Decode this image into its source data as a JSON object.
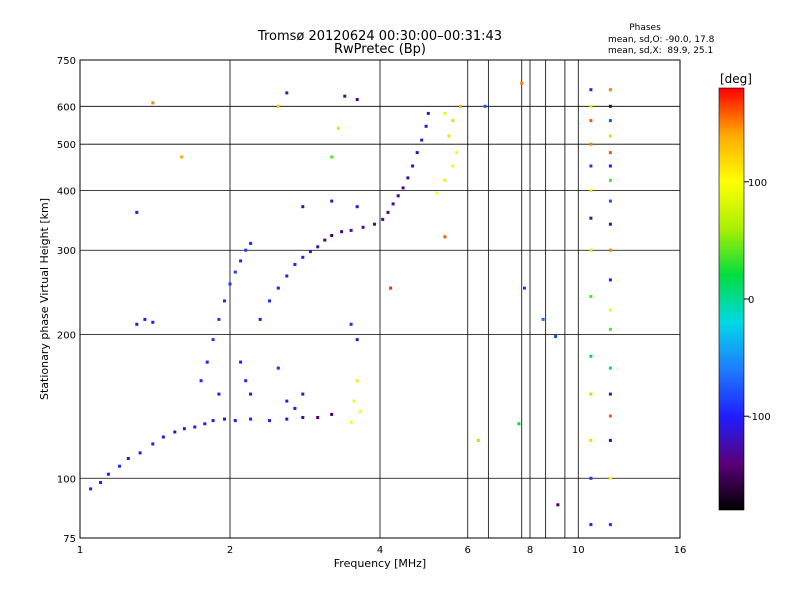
{
  "chart_data": {
    "type": "scatter",
    "title": "Tromsø 20120624 00:30:00–00:31:43",
    "subtitle": "RwPretec (Bp)",
    "xlabel": "Frequency [MHz]",
    "ylabel": "Stationary phase Virtual Height [km]",
    "x_scale": "log",
    "y_scale": "log",
    "xlim": [
      1,
      16
    ],
    "ylim": [
      75,
      750
    ],
    "x_ticks": [
      1,
      2,
      4,
      6,
      8,
      10,
      16
    ],
    "x_minor_gridlines": [
      6.6,
      7.7,
      8.6,
      9.4
    ],
    "y_ticks": [
      75,
      100,
      200,
      300,
      400,
      500,
      600,
      750
    ],
    "grid": true,
    "phase_stats": {
      "heading": "Phases",
      "o_line": "mean, sd,O: -90.0, 17.8",
      "x_line": "mean, sd,X:  89.9, 25.1"
    },
    "colorbar": {
      "label": "[deg]",
      "ticks": [
        100,
        0,
        -100
      ],
      "range": [
        -180,
        180
      ],
      "stops": [
        "#000000",
        "#5a007a",
        "#1e1eff",
        "#1e7dff",
        "#00d8e6",
        "#00dd40",
        "#aaf000",
        "#ffff00",
        "#ffaa00",
        "#ff0000"
      ]
    },
    "series": [
      {
        "points": [
          [
            1.05,
            95
          ],
          [
            1.1,
            98
          ],
          [
            1.14,
            102
          ],
          [
            1.2,
            106
          ],
          [
            1.25,
            110
          ],
          [
            1.32,
            113
          ],
          [
            1.4,
            118
          ],
          [
            1.47,
            122
          ],
          [
            1.55,
            125
          ],
          [
            1.62,
            127
          ],
          [
            1.7,
            128
          ],
          [
            1.78,
            130
          ],
          [
            1.85,
            132
          ],
          [
            1.95,
            133
          ],
          [
            2.05,
            132
          ],
          [
            2.2,
            133
          ],
          [
            2.4,
            132
          ],
          [
            2.6,
            133
          ],
          [
            2.8,
            134
          ],
          [
            3.0,
            134
          ],
          [
            3.2,
            136
          ],
          [
            1.75,
            160
          ],
          [
            1.8,
            175
          ],
          [
            1.85,
            195
          ],
          [
            1.9,
            215
          ],
          [
            1.95,
            235
          ],
          [
            2.0,
            255
          ],
          [
            2.05,
            270
          ],
          [
            2.1,
            285
          ],
          [
            2.15,
            300
          ],
          [
            2.2,
            310
          ],
          [
            2.1,
            175
          ],
          [
            2.15,
            160
          ],
          [
            2.2,
            150
          ],
          [
            1.9,
            150
          ],
          [
            2.3,
            215
          ],
          [
            2.4,
            235
          ],
          [
            2.5,
            250
          ],
          [
            2.6,
            265
          ],
          [
            2.7,
            280
          ],
          [
            2.8,
            290
          ],
          [
            2.9,
            298
          ],
          [
            3.0,
            305
          ],
          [
            3.1,
            315
          ],
          [
            3.2,
            322
          ],
          [
            3.35,
            328
          ],
          [
            3.5,
            330
          ],
          [
            3.7,
            335
          ],
          [
            3.9,
            340
          ],
          [
            4.05,
            348
          ],
          [
            4.15,
            360
          ],
          [
            4.25,
            375
          ],
          [
            4.35,
            390
          ],
          [
            4.45,
            405
          ],
          [
            4.55,
            425
          ],
          [
            4.65,
            450
          ],
          [
            4.75,
            480
          ],
          [
            4.85,
            510
          ],
          [
            4.95,
            545
          ],
          [
            5.0,
            580
          ],
          [
            5.2,
            395
          ],
          [
            5.4,
            420
          ],
          [
            5.6,
            450
          ],
          [
            5.7,
            480
          ],
          [
            5.5,
            520
          ],
          [
            5.6,
            560
          ],
          [
            5.8,
            600
          ],
          [
            5.4,
            580
          ],
          [
            1.3,
            210
          ],
          [
            1.35,
            215
          ],
          [
            1.4,
            212
          ],
          [
            2.5,
            170
          ],
          [
            2.6,
            145
          ],
          [
            2.7,
            140
          ],
          [
            2.8,
            150
          ],
          [
            3.5,
            210
          ],
          [
            3.6,
            195
          ],
          [
            3.6,
            160
          ],
          [
            3.55,
            145
          ],
          [
            3.65,
            138
          ],
          [
            3.5,
            131
          ],
          [
            3.6,
            620
          ],
          [
            3.4,
            630
          ],
          [
            2.6,
            640
          ],
          [
            2.5,
            600
          ],
          [
            2.8,
            370
          ],
          [
            3.2,
            380
          ],
          [
            3.6,
            370
          ],
          [
            10.6,
            650
          ],
          [
            10.6,
            600
          ],
          [
            10.6,
            560
          ],
          [
            10.6,
            500
          ],
          [
            10.6,
            450
          ],
          [
            10.6,
            400
          ],
          [
            10.6,
            350
          ],
          [
            10.6,
            300
          ],
          [
            10.6,
            240
          ],
          [
            10.6,
            180
          ],
          [
            10.6,
            150
          ],
          [
            10.6,
            120
          ],
          [
            10.6,
            100
          ],
          [
            10.6,
            80
          ],
          [
            11.6,
            650
          ],
          [
            11.6,
            600
          ],
          [
            11.6,
            560
          ],
          [
            11.6,
            520
          ],
          [
            11.6,
            480
          ],
          [
            11.6,
            450
          ],
          [
            11.6,
            420
          ],
          [
            11.6,
            380
          ],
          [
            11.6,
            340
          ],
          [
            11.6,
            300
          ],
          [
            11.6,
            260
          ],
          [
            11.6,
            225
          ],
          [
            11.6,
            205
          ],
          [
            11.6,
            170
          ],
          [
            11.6,
            150
          ],
          [
            11.6,
            135
          ],
          [
            11.6,
            120
          ],
          [
            11.6,
            100
          ],
          [
            11.6,
            80
          ],
          [
            1.6,
            470
          ],
          [
            1.4,
            610
          ],
          [
            1.3,
            360
          ],
          [
            3.3,
            540
          ],
          [
            6.5,
            600
          ],
          [
            7.7,
            670
          ],
          [
            7.8,
            250
          ],
          [
            8.5,
            215
          ],
          [
            9.0,
            198
          ],
          [
            6.3,
            120
          ],
          [
            5.4,
            320
          ],
          [
            7.6,
            130
          ],
          [
            4.2,
            250
          ],
          [
            9.1,
            88
          ],
          [
            3.2,
            470
          ]
        ],
        "phases": [
          -100,
          -105,
          -110,
          -95,
          -110,
          -108,
          -100,
          -110,
          -115,
          -105,
          -110,
          -110,
          -105,
          -110,
          -110,
          -100,
          -105,
          -110,
          -130,
          -145,
          -150,
          -95,
          -100,
          -90,
          -90,
          -95,
          -90,
          -85,
          -95,
          -90,
          -100,
          -100,
          -95,
          -110,
          -100,
          -100,
          -95,
          -105,
          -100,
          -95,
          -100,
          -110,
          -120,
          -140,
          -150,
          -145,
          -120,
          -130,
          -125,
          -130,
          -135,
          -125,
          -130,
          -135,
          -130,
          -125,
          -120,
          -110,
          -115,
          -120,
          100,
          110,
          95,
          105,
          115,
          120,
          140,
          90,
          -110,
          -105,
          -100,
          -95,
          -100,
          -105,
          -110,
          -95,
          -120,
          110,
          105,
          100,
          100,
          -130,
          -135,
          -120,
          130,
          -125,
          -120,
          -110,
          -100,
          80,
          160,
          150,
          -90,
          110,
          -130,
          80,
          40,
          20,
          60,
          120,
          -90,
          -100,
          150,
          -150,
          -80,
          120,
          160,
          -100,
          40,
          -80,
          -120,
          150,
          -100,
          90,
          40,
          -30,
          -120,
          160,
          -140,
          100,
          -90,
          140,
          150,
          -100,
          120,
          -80,
          150,
          -90,
          -70,
          -80,
          60,
          160,
          20,
          170,
          -150,
          40
        ]
      }
    ]
  }
}
